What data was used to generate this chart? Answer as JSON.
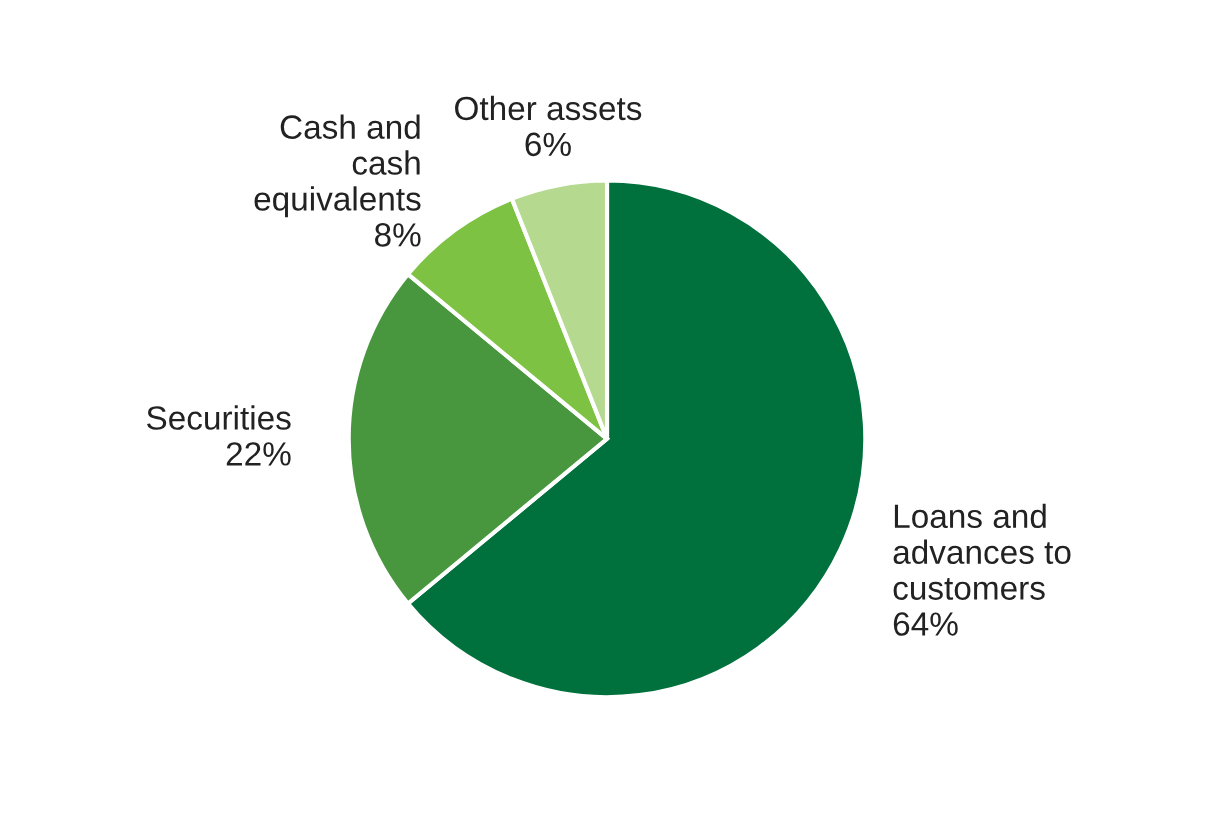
{
  "chart_data": {
    "type": "pie",
    "categories": [
      "Loans and\nadvances to\ncustomers",
      "Securities",
      "Cash and\ncash\nequivalents",
      "Other assets"
    ],
    "values": [
      64,
      22,
      8,
      6
    ],
    "value_labels": [
      "64%",
      "22%",
      "8%",
      "6%"
    ],
    "colors": [
      "#00703c",
      "#48973e",
      "#7dc242",
      "#b5d98f"
    ],
    "legend": false
  }
}
